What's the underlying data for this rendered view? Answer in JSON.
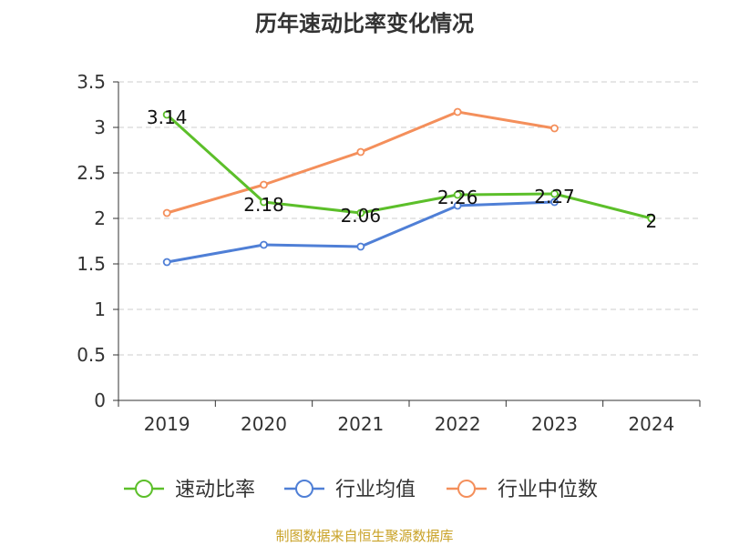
{
  "chart_data": {
    "type": "line",
    "title": "历年速动比率变化情况",
    "categories": [
      "2019",
      "2020",
      "2021",
      "2022",
      "2023",
      "2024"
    ],
    "ylim": [
      0,
      3.5
    ],
    "yticks": [
      "0",
      "0.5",
      "1",
      "1.5",
      "2",
      "2.5",
      "3",
      "3.5"
    ],
    "grid": true,
    "legend_position": "bottom",
    "series": [
      {
        "name": "速动比率",
        "color": "#5cbf2a",
        "values": [
          3.14,
          2.18,
          2.06,
          2.26,
          2.27,
          2
        ],
        "labels": [
          "3.14",
          "2.18",
          "2.06",
          "2.26",
          "2.27",
          "2"
        ]
      },
      {
        "name": "行业均值",
        "color": "#4f7fd6",
        "values": [
          1.52,
          1.71,
          1.69,
          2.14,
          2.18,
          null
        ]
      },
      {
        "name": "行业中位数",
        "color": "#f48f5b",
        "values": [
          2.06,
          2.37,
          2.73,
          3.17,
          2.99,
          null
        ]
      }
    ]
  },
  "footer": {
    "source": "制图数据来自恒生聚源数据库"
  }
}
